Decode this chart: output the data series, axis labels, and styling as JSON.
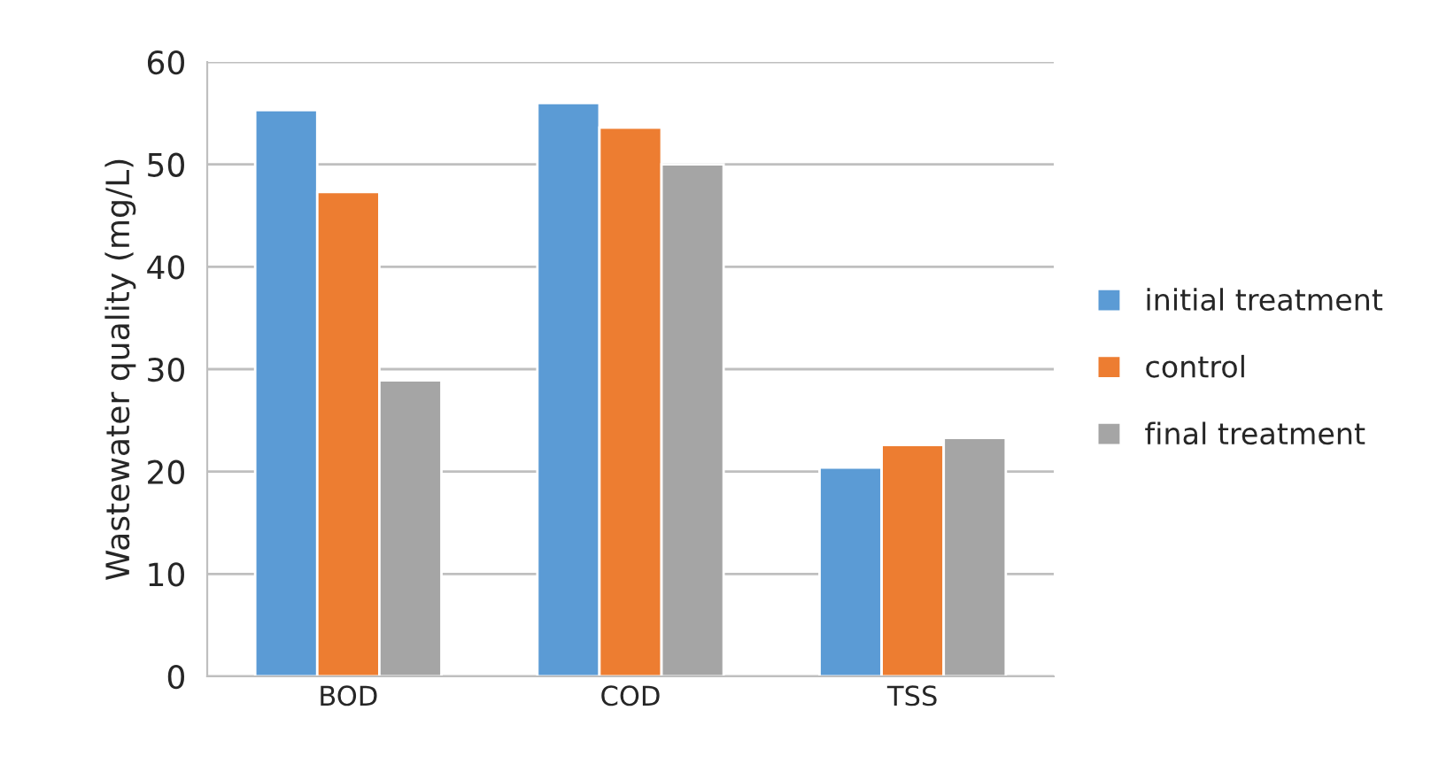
{
  "chart_data": {
    "type": "bar",
    "ylabel": "Wastewater quality (mg/L)",
    "categories": [
      "BOD",
      "COD",
      "TSS"
    ],
    "series": [
      {
        "name": "initial treatment",
        "color": "#5b9bd5",
        "values": [
          55.3,
          56.0,
          20.4
        ]
      },
      {
        "name": "control",
        "color": "#ed7d31",
        "values": [
          47.3,
          53.6,
          22.6
        ]
      },
      {
        "name": "final treatment",
        "color": "#a5a5a5",
        "values": [
          28.9,
          50.0,
          23.3
        ]
      }
    ],
    "ylim": [
      0,
      60
    ],
    "yticks": [
      0,
      10,
      20,
      30,
      40,
      50,
      60
    ],
    "grid": "y",
    "legend": "right"
  }
}
